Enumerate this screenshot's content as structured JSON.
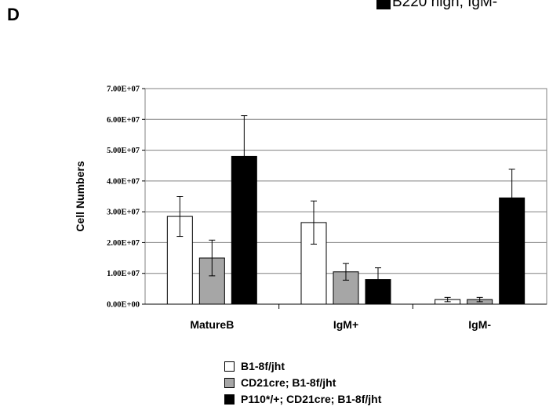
{
  "panel_label": "D",
  "top_legend_text": "B220 high, IgM-",
  "chart_data": {
    "type": "bar",
    "ylabel": "Cell Numbers",
    "xlabel": "",
    "ylim": [
      0,
      70000000
    ],
    "y_ticks": [
      "0.00E+00",
      "1.00E+07",
      "2.00E+07",
      "3.00E+07",
      "4.00E+07",
      "5.00E+07",
      "6.00E+07",
      "7.00E+07"
    ],
    "y_tick_values": [
      0,
      10000000,
      20000000,
      30000000,
      40000000,
      50000000,
      60000000,
      70000000
    ],
    "categories": [
      "MatureB",
      "IgM+",
      "IgM-"
    ],
    "grid": true,
    "legend_position": "bottom",
    "series": [
      {
        "name": "B1-8f/jht",
        "color": "#ffffff",
        "values": [
          28500000,
          26500000,
          1500000
        ],
        "errors": [
          6500000,
          7000000,
          700000
        ]
      },
      {
        "name": "CD21cre; B1-8f/jht",
        "color": "#a6a6a6",
        "values": [
          15000000,
          10500000,
          1500000
        ],
        "errors": [
          5800000,
          2700000,
          700000
        ]
      },
      {
        "name": "P110*/+; CD21cre; B1-8f/jht",
        "color": "#000000",
        "values": [
          48000000,
          8000000,
          34500000
        ],
        "errors": [
          13200000,
          3800000,
          9300000
        ]
      }
    ]
  }
}
